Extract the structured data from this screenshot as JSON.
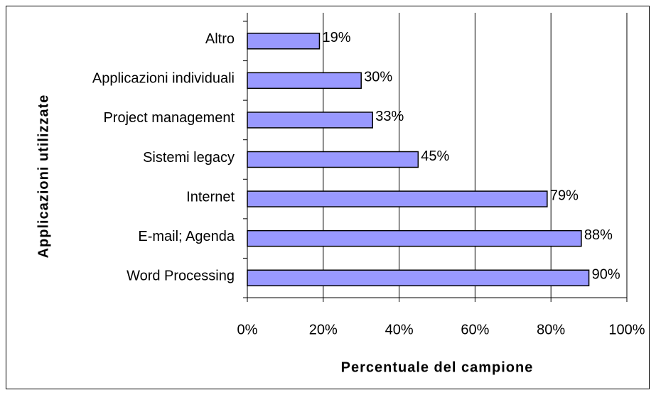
{
  "chart_data": {
    "type": "bar",
    "orientation": "horizontal",
    "xlabel": "Percentuale del campione",
    "ylabel": "Applicazioni utilizzate",
    "categories": [
      "Altro",
      "Applicazioni individuali",
      "Project management",
      "Sistemi legacy",
      "Internet",
      "E-mail; Agenda",
      "Word Processing"
    ],
    "values": [
      19,
      30,
      33,
      45,
      79,
      88,
      90
    ],
    "value_labels": [
      "19%",
      "30%",
      "33%",
      "45%",
      "79%",
      "88%",
      "90%"
    ],
    "color": "#9999ff",
    "xlim": [
      0,
      100
    ],
    "xticks": [
      {
        "value": 0,
        "label": "0%"
      },
      {
        "value": 20,
        "label": "20%"
      },
      {
        "value": 40,
        "label": "40%"
      },
      {
        "value": 60,
        "label": "60%"
      },
      {
        "value": 80,
        "label": "80%"
      },
      {
        "value": 100,
        "label": "100%"
      }
    ],
    "grid": true
  }
}
